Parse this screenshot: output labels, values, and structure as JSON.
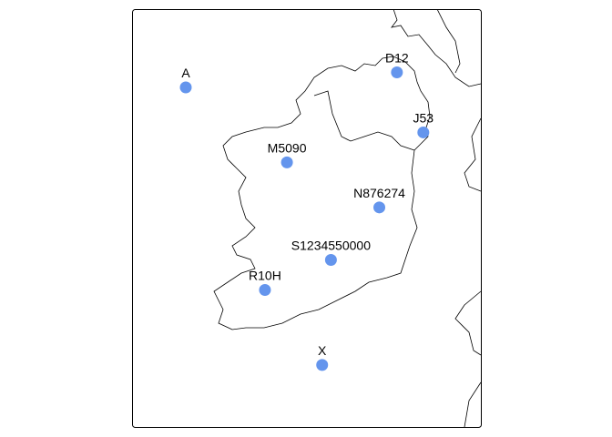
{
  "map": {
    "point_color": "#6495ED",
    "coast_color": "#000000",
    "points": [
      {
        "label": "A",
        "lon": -11.0,
        "lat": 55.2
      },
      {
        "label": "D12",
        "lon": -6.2,
        "lat": 55.4
      },
      {
        "label": "J53",
        "lon": -5.6,
        "lat": 54.6
      },
      {
        "label": "M5090",
        "lon": -8.7,
        "lat": 54.2
      },
      {
        "label": "N876274",
        "lon": -6.6,
        "lat": 53.6
      },
      {
        "label": "S1234550000",
        "lon": -7.7,
        "lat": 52.9
      },
      {
        "label": "R10H",
        "lon": -9.2,
        "lat": 52.5
      },
      {
        "label": "X",
        "lon": -7.9,
        "lat": 51.5
      }
    ]
  }
}
